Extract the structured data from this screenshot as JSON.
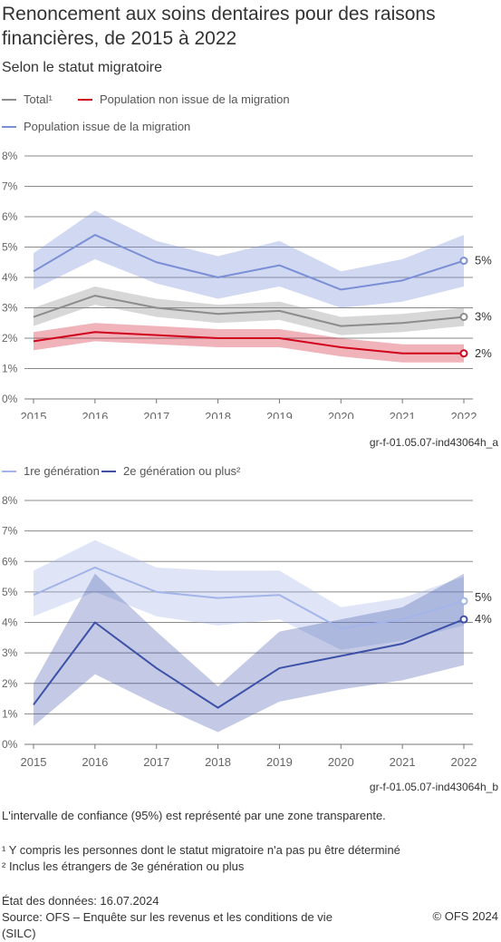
{
  "title": "Renoncement aux soins dentaires pour des raisons financières, de 2015 à 2022",
  "subtitle": "Selon le statut migratoire",
  "colors": {
    "total": "#8c8c8c",
    "non_migration": "#d0021b",
    "migration": "#7a8fd6",
    "first_gen": "#a3b4e8",
    "second_gen": "#3d51a8"
  },
  "chart_data": [
    {
      "type": "line",
      "code": "gr-f-01.05.07-ind43064h_a",
      "legend": [
        "Total¹",
        "Population non issue de la migration",
        "Population issue de la migration"
      ],
      "x": [
        "2015",
        "2016",
        "2017",
        "2018",
        "2019",
        "2020",
        "2021",
        "2022"
      ],
      "yticks": [
        "0%",
        "1%",
        "2%",
        "3%",
        "4%",
        "5%",
        "6%",
        "7%",
        "8%"
      ],
      "ylim": [
        0,
        8
      ],
      "series": [
        {
          "name": "Population issue de la migration",
          "values": [
            4.2,
            5.4,
            4.5,
            4.0,
            4.4,
            3.6,
            3.9,
            4.55
          ],
          "lower": [
            3.6,
            4.6,
            3.8,
            3.3,
            3.7,
            3.0,
            3.2,
            3.7
          ],
          "upper": [
            4.8,
            6.2,
            5.2,
            4.7,
            5.2,
            4.2,
            4.6,
            5.4
          ],
          "end_label": "5%"
        },
        {
          "name": "Total¹",
          "values": [
            2.7,
            3.4,
            3.0,
            2.8,
            2.9,
            2.4,
            2.5,
            2.7
          ],
          "lower": [
            2.4,
            3.1,
            2.7,
            2.5,
            2.6,
            2.1,
            2.2,
            2.4
          ],
          "upper": [
            3.0,
            3.7,
            3.3,
            3.1,
            3.2,
            2.7,
            2.8,
            3.0
          ],
          "end_label": "3%"
        },
        {
          "name": "Population non issue de la migration",
          "values": [
            1.9,
            2.2,
            2.1,
            2.0,
            2.0,
            1.7,
            1.5,
            1.5
          ],
          "lower": [
            1.6,
            1.9,
            1.8,
            1.7,
            1.7,
            1.4,
            1.2,
            1.2
          ],
          "upper": [
            2.2,
            2.5,
            2.4,
            2.3,
            2.3,
            2.0,
            1.8,
            1.8
          ],
          "end_label": "2%"
        }
      ]
    },
    {
      "type": "line",
      "code": "gr-f-01.05.07-ind43064h_b",
      "legend": [
        "1re génération",
        "2e génération ou plus²"
      ],
      "x": [
        "2015",
        "2016",
        "2017",
        "2018",
        "2019",
        "2020",
        "2021",
        "2022"
      ],
      "yticks": [
        "0%",
        "1%",
        "2%",
        "3%",
        "4%",
        "5%",
        "6%",
        "7%",
        "8%"
      ],
      "ylim": [
        0,
        8
      ],
      "series": [
        {
          "name": "1re génération",
          "values": [
            4.9,
            5.8,
            5.0,
            4.8,
            4.9,
            3.8,
            4.1,
            4.7
          ],
          "lower": [
            4.2,
            5.0,
            4.2,
            3.9,
            4.1,
            3.1,
            3.4,
            3.9
          ],
          "upper": [
            5.7,
            6.7,
            5.8,
            5.7,
            5.7,
            4.5,
            4.8,
            5.5
          ],
          "end_label": "5%"
        },
        {
          "name": "2e génération ou plus²",
          "values": [
            1.3,
            4.0,
            2.5,
            1.2,
            2.5,
            2.9,
            3.3,
            4.1
          ],
          "lower": [
            0.6,
            2.3,
            1.3,
            0.4,
            1.4,
            1.8,
            2.1,
            2.6
          ],
          "upper": [
            2.0,
            5.6,
            3.7,
            1.9,
            3.7,
            4.1,
            4.5,
            5.6
          ],
          "end_label": "4%"
        }
      ]
    }
  ],
  "notes": {
    "ci": "L'intervalle de confiance (95%) est représenté par une zone transparente.",
    "fn1": "¹ Y compris les personnes dont le statut migratoire n'a pas pu être déterminé",
    "fn2": "² Inclus les étrangers de 3e génération ou plus",
    "date": "État des données: 16.07.2024",
    "source_line1": "Source: OFS – Enquête sur les revenus et les conditions de vie",
    "source_line2": "(SILC)",
    "credit": "© OFS 2024"
  }
}
